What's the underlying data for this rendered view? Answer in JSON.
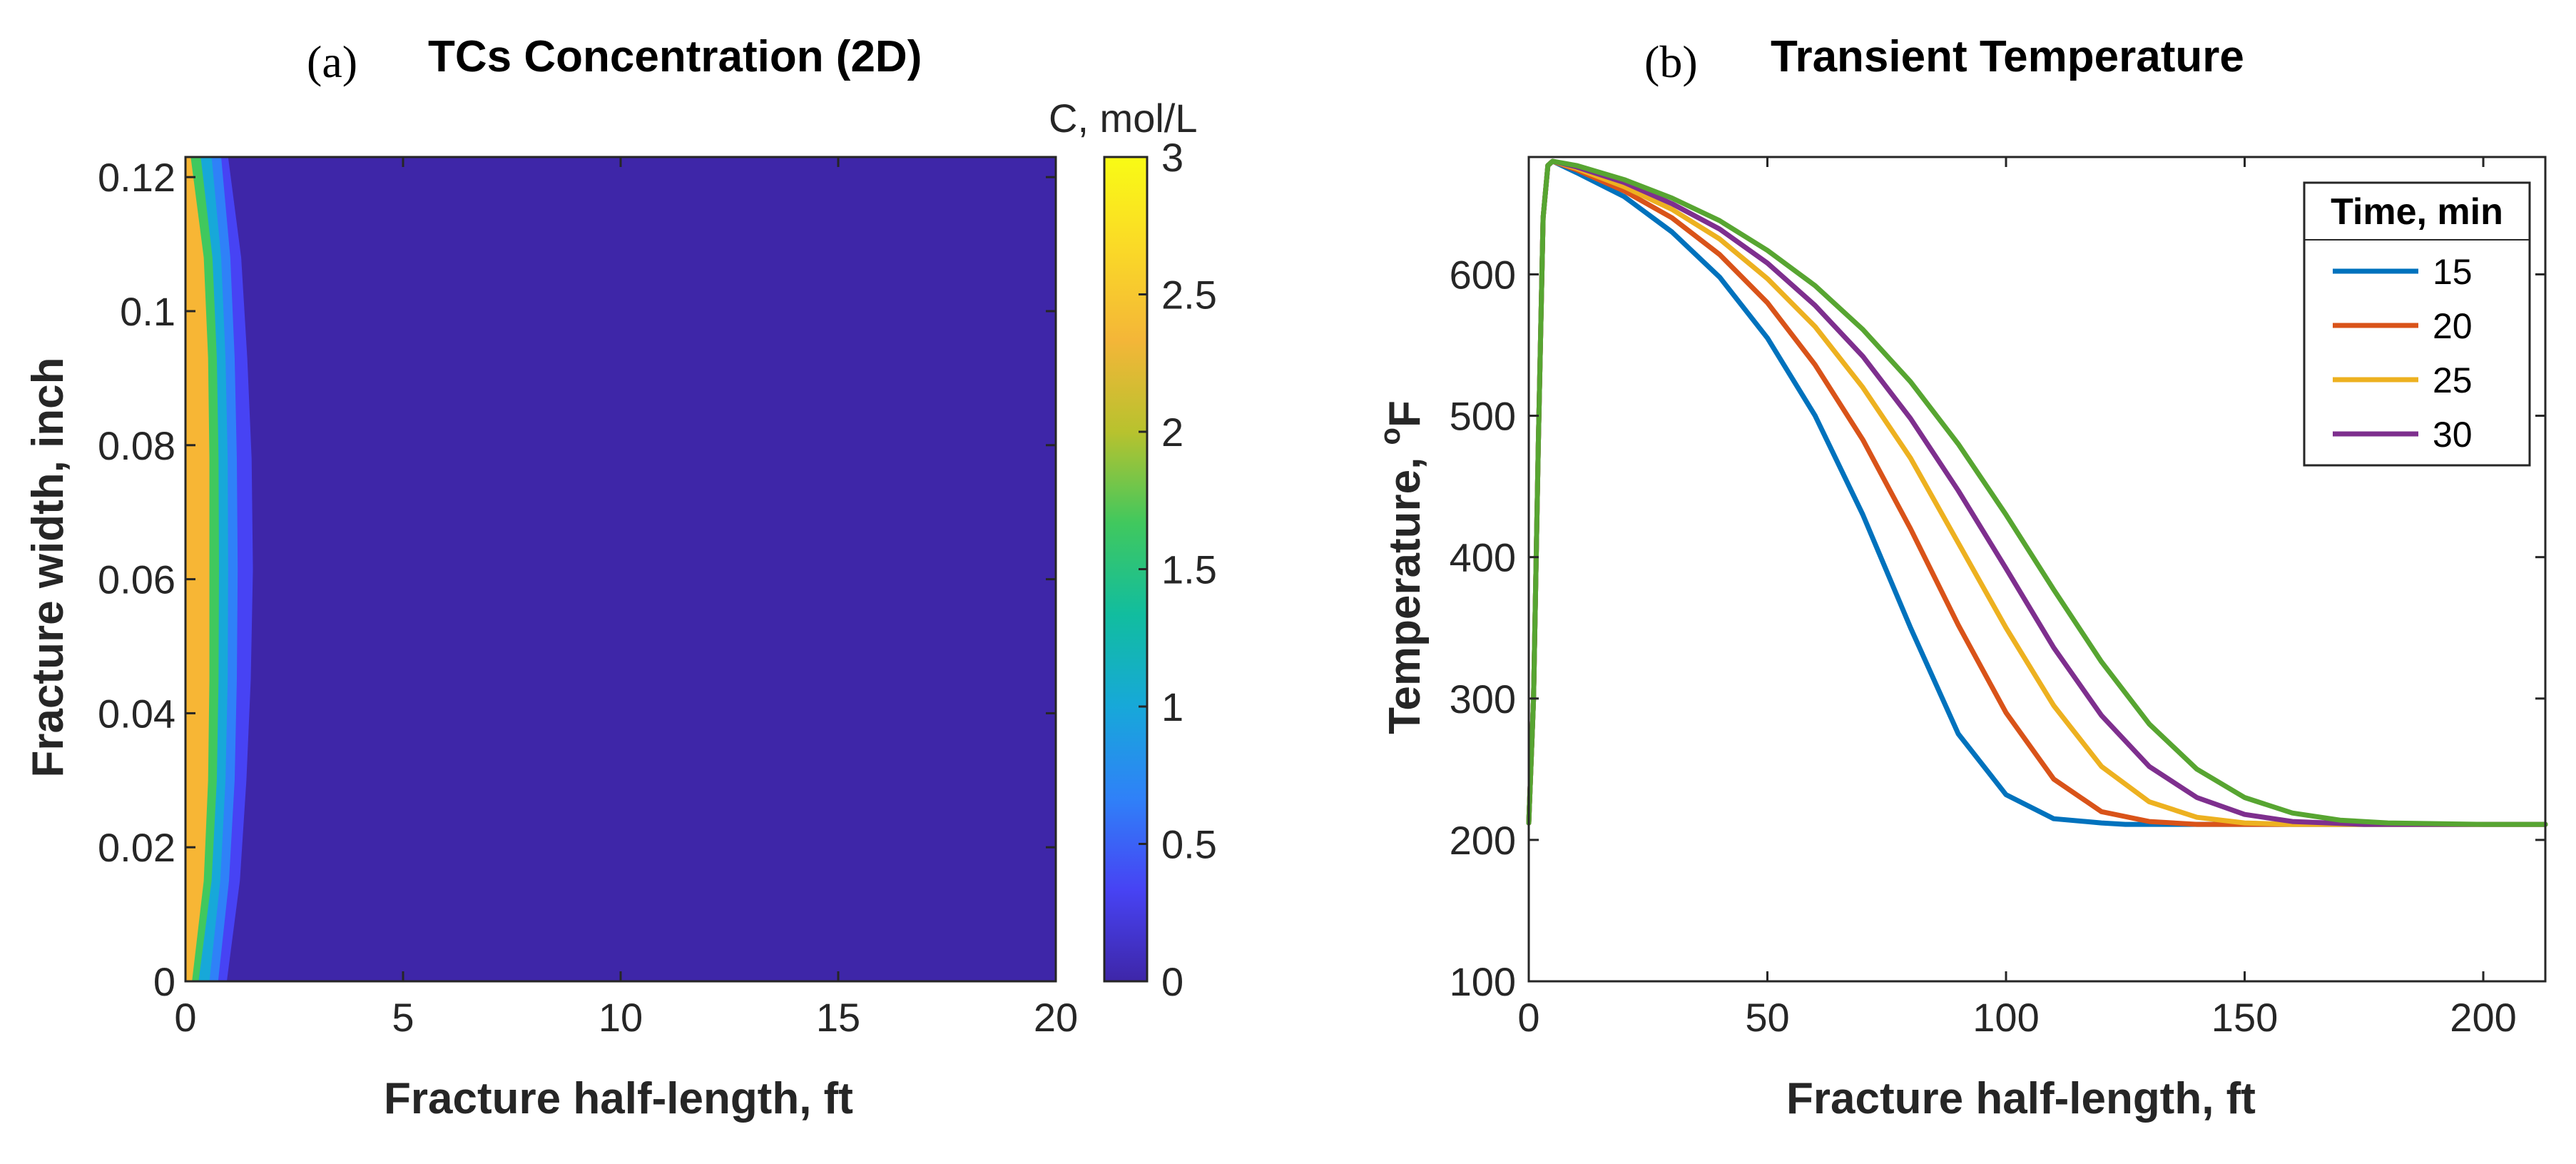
{
  "chart_data": [
    {
      "type": "heatmap",
      "panel_label": "(a)",
      "title": "TCs Concentration (2D)",
      "xlabel": "Fracture half-length, ft",
      "ylabel": "Fracture width, inch",
      "colorbar_label": "C, mol/L",
      "xlim": [
        0,
        20
      ],
      "ylim": [
        0,
        0.123
      ],
      "xticks": [
        0,
        5,
        10,
        15,
        20
      ],
      "xtick_labels": [
        "0",
        "5",
        "10",
        "15",
        "20"
      ],
      "yticks": [
        0,
        0.02,
        0.04,
        0.06,
        0.08,
        0.1,
        0.12
      ],
      "ytick_labels": [
        "0",
        "0.02",
        "0.04",
        "0.06",
        "0.08",
        "0.1",
        "0.12"
      ],
      "clim": [
        0,
        3
      ],
      "cticks": [
        0,
        0.5,
        1,
        1.5,
        2,
        2.5,
        3
      ],
      "ctick_labels": [
        "0",
        "0.5",
        "1",
        "1.5",
        "2",
        "2.5",
        "3"
      ],
      "colormap": "parula",
      "colormap_stops": [
        "#3e26a8",
        "#4743f4",
        "#2f81f8",
        "#17a8d9",
        "#11bd9f",
        "#40c85e",
        "#b8c22e",
        "#f4b638",
        "#fad927",
        "#f9fb15"
      ],
      "bands": [
        {
          "label": "2.5",
          "color": "#f7b635",
          "x_front": [
            0.15,
            0.42,
            0.52,
            0.55,
            0.55,
            0.55,
            0.52,
            0.42,
            0.12
          ],
          "y": [
            0,
            0.015,
            0.03,
            0.045,
            0.0615,
            0.078,
            0.093,
            0.108,
            0.123
          ]
        },
        {
          "label": "2",
          "color": "#40c85e",
          "x_front": [
            0.3,
            0.6,
            0.72,
            0.76,
            0.77,
            0.76,
            0.72,
            0.62,
            0.35
          ],
          "y": [
            0,
            0.015,
            0.03,
            0.045,
            0.0615,
            0.078,
            0.093,
            0.108,
            0.123
          ]
        },
        {
          "label": "1.5",
          "color": "#17a8d9",
          "x_front": [
            0.55,
            0.8,
            0.92,
            0.97,
            0.98,
            0.97,
            0.92,
            0.82,
            0.6
          ],
          "y": [
            0,
            0.015,
            0.03,
            0.045,
            0.0615,
            0.078,
            0.093,
            0.108,
            0.123
          ]
        },
        {
          "label": "1",
          "color": "#2f81f8",
          "x_front": [
            0.75,
            1.0,
            1.13,
            1.18,
            1.2,
            1.18,
            1.13,
            1.03,
            0.82
          ],
          "y": [
            0,
            0.015,
            0.03,
            0.045,
            0.0615,
            0.078,
            0.093,
            0.108,
            0.123
          ]
        },
        {
          "label": "0.5",
          "color": "#4743f4",
          "x_front": [
            0.95,
            1.25,
            1.4,
            1.5,
            1.55,
            1.52,
            1.42,
            1.28,
            0.98
          ],
          "y": [
            0,
            0.015,
            0.03,
            0.045,
            0.0615,
            0.078,
            0.093,
            0.108,
            0.123
          ]
        }
      ],
      "background_color": "#3e26a8"
    },
    {
      "type": "line",
      "panel_label": "(b)",
      "title": "Transient Temperature",
      "xlabel": "Fracture half-length, ft",
      "ylabel": "Temperature, ",
      "ylabel_unit_sup": "o",
      "ylabel_unit": "F",
      "xlim": [
        0,
        213
      ],
      "ylim": [
        100,
        683
      ],
      "xticks": [
        0,
        50,
        100,
        150,
        200
      ],
      "xtick_labels": [
        "0",
        "50",
        "100",
        "150",
        "200"
      ],
      "yticks": [
        100,
        200,
        300,
        400,
        500,
        600
      ],
      "ytick_labels": [
        "100",
        "200",
        "300",
        "400",
        "500",
        "600"
      ],
      "legend_title": "Time, min",
      "legend_position": "top-right",
      "series": [
        {
          "name": "15",
          "color": "#0072bd",
          "x": [
            0,
            1,
            2,
            3,
            4,
            5,
            10,
            20,
            30,
            40,
            50,
            60,
            70,
            80,
            90,
            100,
            110,
            120,
            125,
            130,
            140,
            150,
            175,
            200,
            213
          ],
          "y": [
            212,
            300,
            480,
            640,
            677,
            680,
            672,
            655,
            630,
            598,
            555,
            500,
            430,
            350,
            275,
            232,
            215,
            212,
            211,
            211,
            211,
            211,
            211,
            211,
            211
          ]
        },
        {
          "name": "20",
          "color": "#d95319",
          "x": [
            0,
            1,
            2,
            3,
            4,
            5,
            10,
            20,
            30,
            40,
            50,
            60,
            70,
            80,
            90,
            100,
            110,
            120,
            130,
            140,
            150,
            175,
            200,
            213
          ],
          "y": [
            212,
            300,
            480,
            640,
            677,
            680,
            674,
            659,
            640,
            614,
            580,
            536,
            483,
            420,
            352,
            290,
            243,
            220,
            213,
            211,
            211,
            211,
            211,
            211
          ]
        },
        {
          "name": "25",
          "color": "#edb120",
          "x": [
            0,
            1,
            2,
            3,
            4,
            5,
            10,
            20,
            30,
            40,
            50,
            60,
            70,
            80,
            90,
            100,
            110,
            120,
            130,
            140,
            150,
            160,
            175,
            200,
            213
          ],
          "y": [
            212,
            300,
            480,
            640,
            677,
            680,
            675,
            662,
            646,
            625,
            597,
            563,
            520,
            470,
            410,
            350,
            295,
            252,
            227,
            216,
            212,
            211,
            211,
            211,
            211
          ]
        },
        {
          "name": "30",
          "color": "#7e2f8e",
          "x": [
            0,
            1,
            2,
            3,
            4,
            5,
            10,
            20,
            30,
            40,
            50,
            60,
            70,
            80,
            90,
            100,
            110,
            120,
            130,
            140,
            150,
            160,
            175,
            200,
            213
          ],
          "y": [
            212,
            300,
            480,
            640,
            677,
            680,
            676,
            665,
            650,
            632,
            608,
            578,
            542,
            498,
            447,
            392,
            336,
            288,
            252,
            230,
            218,
            213,
            211,
            211,
            211
          ]
        },
        {
          "name": "",
          "color": "#57a531",
          "x": [
            0,
            1,
            2,
            3,
            4,
            5,
            10,
            20,
            30,
            40,
            50,
            60,
            70,
            80,
            90,
            100,
            110,
            120,
            130,
            140,
            150,
            160,
            170,
            180,
            200,
            213
          ],
          "y": [
            212,
            300,
            480,
            640,
            677,
            680,
            677,
            667,
            654,
            638,
            617,
            592,
            561,
            524,
            480,
            430,
            377,
            326,
            282,
            250,
            230,
            219,
            214,
            212,
            211,
            211
          ]
        }
      ]
    }
  ]
}
